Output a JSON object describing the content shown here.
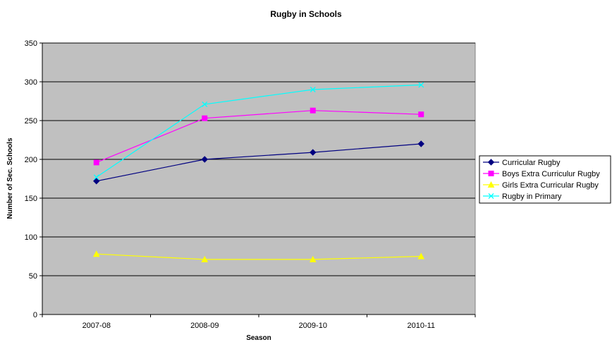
{
  "chart_data": {
    "type": "line",
    "title": "Rugby in Schools",
    "xlabel": "Season",
    "ylabel": "Number of Sec. Schools",
    "categories": [
      "2007-08",
      "2008-09",
      "2009-10",
      "2010-11"
    ],
    "ylim": [
      0,
      350
    ],
    "yticks": [
      0,
      50,
      100,
      150,
      200,
      250,
      300,
      350
    ],
    "grid": true,
    "legend_position": "right",
    "plot_background": "#c0c0c0",
    "series": [
      {
        "name": "Curricular Rugby",
        "values": [
          172,
          200,
          209,
          220
        ],
        "color": "#000080",
        "marker": "diamond"
      },
      {
        "name": "Boys Extra Curriculur Rugby",
        "values": [
          196,
          253,
          263,
          258
        ],
        "color": "#ff00ff",
        "marker": "square"
      },
      {
        "name": "Girls Extra Curricular Rugby",
        "values": [
          78,
          71,
          71,
          75
        ],
        "color": "#ffff00",
        "marker": "triangle"
      },
      {
        "name": "Rugby in Primary",
        "values": [
          177,
          271,
          290,
          296
        ],
        "color": "#00ffff",
        "marker": "x"
      }
    ]
  }
}
